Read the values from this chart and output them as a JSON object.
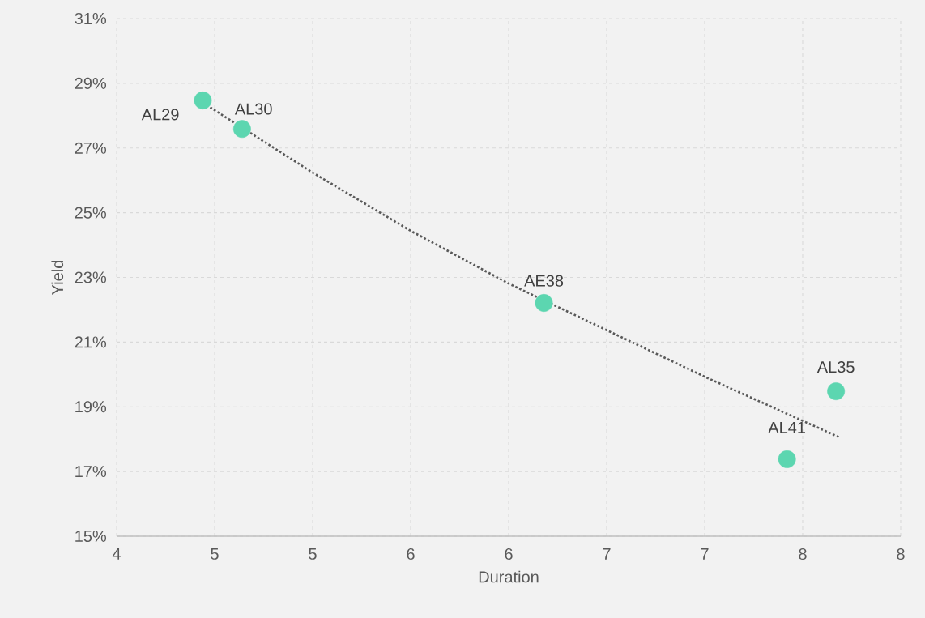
{
  "chart_data": {
    "type": "scatter",
    "xlabel": "Duration",
    "ylabel": "Yield",
    "xlim": [
      4,
      8
    ],
    "ylim": [
      15,
      31
    ],
    "xticks": [
      4,
      {
        "value": 4.5,
        "label": "5"
      },
      5,
      {
        "value": 5.5,
        "label": "6"
      },
      6,
      {
        "value": 6.5,
        "label": "7"
      },
      7,
      {
        "value": 7.5,
        "label": "8"
      },
      8
    ],
    "yticks": [
      {
        "value": 15,
        "label": "15%"
      },
      {
        "value": 17,
        "label": "17%"
      },
      {
        "value": 19,
        "label": "19%"
      },
      {
        "value": 21,
        "label": "21%"
      },
      {
        "value": 23,
        "label": "23%"
      },
      {
        "value": 25,
        "label": "25%"
      },
      {
        "value": 27,
        "label": "27%"
      },
      {
        "value": 29,
        "label": "29%"
      },
      {
        "value": 31,
        "label": "31%"
      }
    ],
    "grid": true,
    "series": [
      {
        "color": "#5cd6b0",
        "marker": "circle",
        "x": [
          4.44,
          4.64,
          6.18,
          7.42,
          7.67
        ],
        "values": [
          28.47,
          27.59,
          22.21,
          17.38,
          19.48
        ]
      },
      {
        "type": "line",
        "color": "#595959",
        "marker": "none",
        "line_style": "dotted",
        "x": [
          4.44,
          5.0,
          5.5,
          6.0,
          7.0,
          7.69
        ],
        "values": [
          28.4,
          26.24,
          24.44,
          22.81,
          19.93,
          18.05
        ]
      }
    ],
    "annotations": [
      {
        "text": "AL29",
        "x": 4.44,
        "y": 28.47
      },
      {
        "text": "AL30",
        "x": 4.64,
        "y": 27.59
      },
      {
        "text": "AE38",
        "x": 6.18,
        "y": 22.21
      },
      {
        "text": "AL41",
        "x": 7.42,
        "y": 17.38
      },
      {
        "text": "AL35",
        "x": 7.67,
        "y": 19.48
      }
    ]
  }
}
